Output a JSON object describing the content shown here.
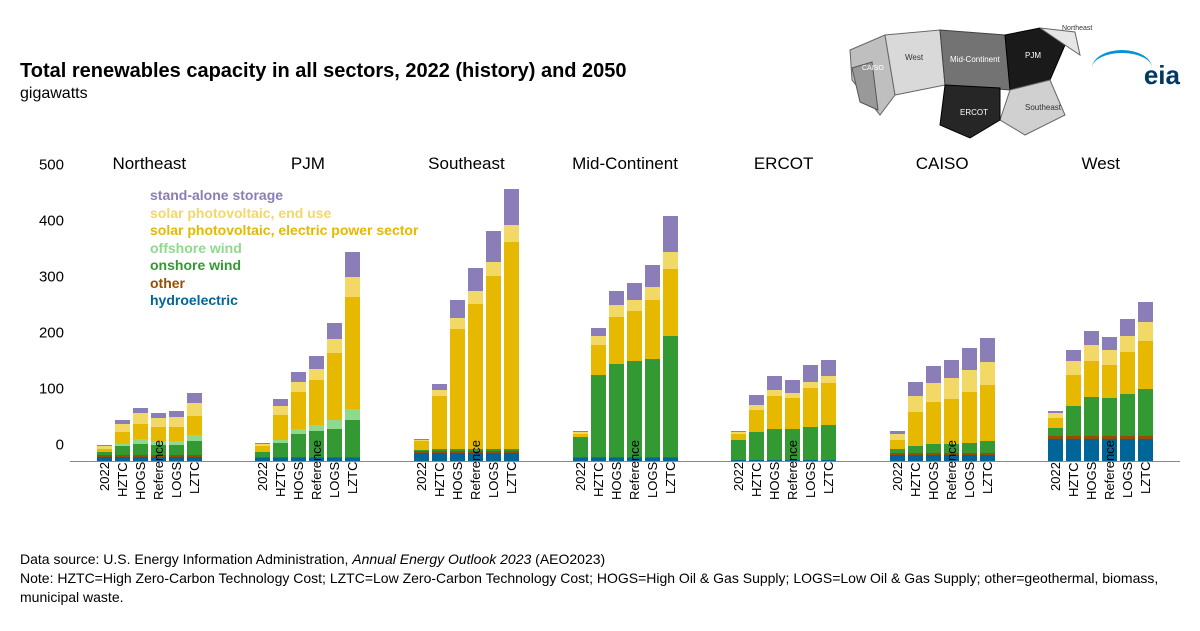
{
  "title": "Total renewables capacity in all sectors, 2022 (history) and 2050",
  "subtitle": "gigawatts",
  "logo_text": "eia",
  "y_axis": {
    "max": 500,
    "ticks": [
      0,
      100,
      200,
      300,
      400,
      500
    ]
  },
  "scenarios": [
    "2022",
    "HZTC",
    "HOGS",
    "Reference",
    "LOGS",
    "LZTC"
  ],
  "series": [
    {
      "key": "hydro",
      "label": "hydroelectric",
      "color": "#006699"
    },
    {
      "key": "other",
      "label": "other",
      "color": "#994d00"
    },
    {
      "key": "onshore",
      "label": "onshore wind",
      "color": "#339933"
    },
    {
      "key": "offshore",
      "label": "offshore wind",
      "color": "#8fd98f"
    },
    {
      "key": "solar_ep",
      "label": "solar photovoltaic, electric power sector",
      "color": "#e6b800"
    },
    {
      "key": "solar_eu",
      "label": "solar photovoltaic, end use",
      "color": "#f2d966"
    },
    {
      "key": "storage",
      "label": "stand-alone storage",
      "color": "#8a7db8"
    }
  ],
  "legend_order": [
    "storage",
    "solar_eu",
    "solar_ep",
    "offshore",
    "onshore",
    "other",
    "hydro"
  ],
  "regions": [
    {
      "name": "Northeast",
      "bars": [
        {
          "hydro": 8,
          "other": 3,
          "onshore": 5,
          "offshore": 1,
          "solar_ep": 5,
          "solar_eu": 5,
          "storage": 1
        },
        {
          "hydro": 8,
          "other": 3,
          "onshore": 15,
          "offshore": 5,
          "solar_ep": 20,
          "solar_eu": 15,
          "storage": 8
        },
        {
          "hydro": 8,
          "other": 3,
          "onshore": 20,
          "offshore": 8,
          "solar_ep": 28,
          "solar_eu": 18,
          "storage": 10
        },
        {
          "hydro": 8,
          "other": 3,
          "onshore": 18,
          "offshore": 6,
          "solar_ep": 25,
          "solar_eu": 16,
          "storage": 10
        },
        {
          "hydro": 8,
          "other": 3,
          "onshore": 18,
          "offshore": 7,
          "solar_ep": 25,
          "solar_eu": 17,
          "storage": 12
        },
        {
          "hydro": 8,
          "other": 3,
          "onshore": 25,
          "offshore": 10,
          "solar_ep": 35,
          "solar_eu": 22,
          "storage": 18
        }
      ]
    },
    {
      "name": "PJM",
      "bars": [
        {
          "hydro": 5,
          "other": 3,
          "onshore": 8,
          "offshore": 0,
          "solar_ep": 10,
          "solar_eu": 5,
          "storage": 2
        },
        {
          "hydro": 5,
          "other": 3,
          "onshore": 25,
          "offshore": 5,
          "solar_ep": 45,
          "solar_eu": 15,
          "storage": 12
        },
        {
          "hydro": 5,
          "other": 3,
          "onshore": 40,
          "offshore": 10,
          "solar_ep": 65,
          "solar_eu": 18,
          "storage": 18
        },
        {
          "hydro": 5,
          "other": 3,
          "onshore": 45,
          "offshore": 12,
          "solar_ep": 80,
          "solar_eu": 20,
          "storage": 22
        },
        {
          "hydro": 5,
          "other": 3,
          "onshore": 50,
          "offshore": 15,
          "solar_ep": 120,
          "solar_eu": 25,
          "storage": 28
        },
        {
          "hydro": 5,
          "other": 3,
          "onshore": 65,
          "offshore": 20,
          "solar_ep": 200,
          "solar_eu": 35,
          "storage": 45
        }
      ]
    },
    {
      "name": "Southeast",
      "bars": [
        {
          "hydro": 15,
          "other": 3,
          "onshore": 2,
          "offshore": 0,
          "solar_ep": 15,
          "solar_eu": 3,
          "storage": 2
        },
        {
          "hydro": 15,
          "other": 3,
          "onshore": 3,
          "offshore": 0,
          "solar_ep": 95,
          "solar_eu": 10,
          "storage": 12
        },
        {
          "hydro": 15,
          "other": 3,
          "onshore": 3,
          "offshore": 0,
          "solar_ep": 215,
          "solar_eu": 20,
          "storage": 32
        },
        {
          "hydro": 15,
          "other": 3,
          "onshore": 3,
          "offshore": 0,
          "solar_ep": 260,
          "solar_eu": 22,
          "storage": 42
        },
        {
          "hydro": 15,
          "other": 3,
          "onshore": 3,
          "offshore": 0,
          "solar_ep": 310,
          "solar_eu": 25,
          "storage": 55
        },
        {
          "hydro": 15,
          "other": 3,
          "onshore": 3,
          "offshore": 0,
          "solar_ep": 370,
          "solar_eu": 30,
          "storage": 65
        }
      ]
    },
    {
      "name": "Mid-Continent",
      "bars": [
        {
          "hydro": 5,
          "other": 3,
          "onshore": 35,
          "offshore": 0,
          "solar_ep": 5,
          "solar_eu": 3,
          "storage": 2
        },
        {
          "hydro": 5,
          "other": 3,
          "onshore": 145,
          "offshore": 0,
          "solar_ep": 55,
          "solar_eu": 15,
          "storage": 15
        },
        {
          "hydro": 5,
          "other": 3,
          "onshore": 165,
          "offshore": 0,
          "solar_ep": 85,
          "solar_eu": 20,
          "storage": 25
        },
        {
          "hydro": 5,
          "other": 3,
          "onshore": 170,
          "offshore": 0,
          "solar_ep": 90,
          "solar_eu": 20,
          "storage": 30
        },
        {
          "hydro": 5,
          "other": 3,
          "onshore": 175,
          "offshore": 0,
          "solar_ep": 105,
          "solar_eu": 22,
          "storage": 40
        },
        {
          "hydro": 5,
          "other": 3,
          "onshore": 215,
          "offshore": 0,
          "solar_ep": 120,
          "solar_eu": 30,
          "storage": 65
        }
      ]
    },
    {
      "name": "ERCOT",
      "bars": [
        {
          "hydro": 1,
          "other": 1,
          "onshore": 35,
          "offshore": 0,
          "solar_ep": 12,
          "solar_eu": 2,
          "storage": 3
        },
        {
          "hydro": 1,
          "other": 1,
          "onshore": 50,
          "offshore": 0,
          "solar_ep": 40,
          "solar_eu": 8,
          "storage": 18
        },
        {
          "hydro": 1,
          "other": 1,
          "onshore": 55,
          "offshore": 0,
          "solar_ep": 60,
          "solar_eu": 10,
          "storage": 25
        },
        {
          "hydro": 1,
          "other": 1,
          "onshore": 55,
          "offshore": 0,
          "solar_ep": 55,
          "solar_eu": 10,
          "storage": 22
        },
        {
          "hydro": 1,
          "other": 1,
          "onshore": 58,
          "offshore": 0,
          "solar_ep": 70,
          "solar_eu": 12,
          "storage": 30
        },
        {
          "hydro": 1,
          "other": 1,
          "onshore": 62,
          "offshore": 0,
          "solar_ep": 75,
          "solar_eu": 12,
          "storage": 30
        }
      ]
    },
    {
      "name": "CAISO",
      "bars": [
        {
          "hydro": 10,
          "other": 5,
          "onshore": 7,
          "offshore": 0,
          "solar_ep": 15,
          "solar_eu": 12,
          "storage": 5
        },
        {
          "hydro": 10,
          "other": 5,
          "onshore": 12,
          "offshore": 0,
          "solar_ep": 60,
          "solar_eu": 30,
          "storage": 25
        },
        {
          "hydro": 10,
          "other": 5,
          "onshore": 15,
          "offshore": 0,
          "solar_ep": 75,
          "solar_eu": 35,
          "storage": 30
        },
        {
          "hydro": 10,
          "other": 5,
          "onshore": 15,
          "offshore": 0,
          "solar_ep": 80,
          "solar_eu": 38,
          "storage": 32
        },
        {
          "hydro": 10,
          "other": 5,
          "onshore": 18,
          "offshore": 0,
          "solar_ep": 90,
          "solar_eu": 40,
          "storage": 38
        },
        {
          "hydro": 10,
          "other": 5,
          "onshore": 20,
          "offshore": 0,
          "solar_ep": 100,
          "solar_eu": 42,
          "storage": 42
        }
      ]
    },
    {
      "name": "West",
      "bars": [
        {
          "hydro": 40,
          "other": 4,
          "onshore": 15,
          "offshore": 0,
          "solar_ep": 18,
          "solar_eu": 8,
          "storage": 5
        },
        {
          "hydro": 40,
          "other": 4,
          "onshore": 55,
          "offshore": 0,
          "solar_ep": 55,
          "solar_eu": 25,
          "storage": 20
        },
        {
          "hydro": 40,
          "other": 4,
          "onshore": 70,
          "offshore": 0,
          "solar_ep": 65,
          "solar_eu": 28,
          "storage": 25
        },
        {
          "hydro": 40,
          "other": 4,
          "onshore": 68,
          "offshore": 0,
          "solar_ep": 60,
          "solar_eu": 27,
          "storage": 23
        },
        {
          "hydro": 40,
          "other": 4,
          "onshore": 75,
          "offshore": 0,
          "solar_ep": 75,
          "solar_eu": 30,
          "storage": 30
        },
        {
          "hydro": 40,
          "other": 4,
          "onshore": 85,
          "offshore": 0,
          "solar_ep": 85,
          "solar_eu": 35,
          "storage": 35
        }
      ]
    }
  ],
  "footer_source_prefix": "Data source: U.S. Energy Information Administration, ",
  "footer_source_italic": "Annual Energy Outlook 2023",
  "footer_source_suffix": " (AEO2023)",
  "footer_note": "Note: HZTC=High Zero-Carbon Technology Cost; LZTC=Low Zero-Carbon Technology Cost; HOGS=High Oil & Gas Supply; LOGS=Low Oil & Gas Supply; other=geothermal, biomass, municipal waste."
}
